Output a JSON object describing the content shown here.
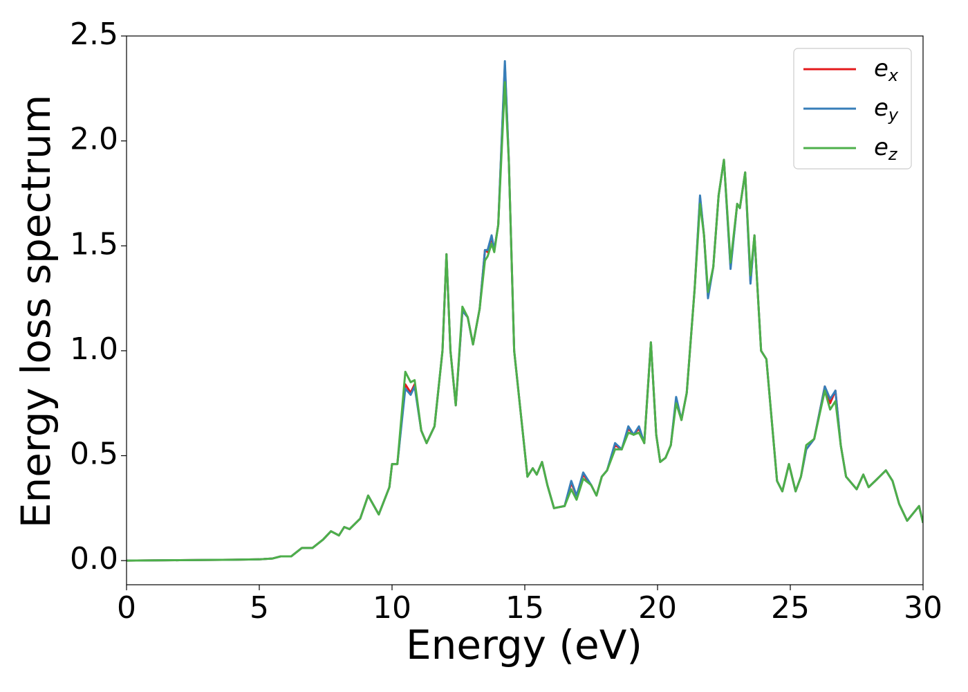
{
  "chart_data": {
    "type": "line",
    "xlabel": "Energy (eV)",
    "ylabel": "Energy loss spectrum",
    "x": [
      0,
      2,
      4,
      5,
      5.5,
      5.8,
      6.2,
      6.6,
      7.0,
      7.4,
      7.7,
      8.0,
      8.2,
      8.4,
      8.8,
      9.1,
      9.5,
      9.9,
      10.0,
      10.2,
      10.5,
      10.7,
      10.85,
      11.1,
      11.3,
      11.6,
      11.9,
      12.05,
      12.2,
      12.4,
      12.65,
      12.85,
      13.05,
      13.3,
      13.5,
      13.6,
      13.75,
      13.85,
      14.0,
      14.25,
      14.4,
      14.6,
      14.85,
      15.1,
      15.3,
      15.45,
      15.65,
      15.85,
      16.1,
      16.5,
      16.75,
      16.95,
      17.2,
      17.5,
      17.7,
      17.9,
      18.1,
      18.4,
      18.65,
      18.9,
      19.1,
      19.3,
      19.5,
      19.75,
      19.95,
      20.1,
      20.3,
      20.5,
      20.7,
      20.9,
      21.1,
      21.4,
      21.6,
      21.75,
      21.9,
      22.1,
      22.3,
      22.5,
      22.75,
      23.0,
      23.1,
      23.3,
      23.5,
      23.65,
      23.9,
      24.1,
      24.5,
      24.7,
      24.95,
      25.2,
      25.4,
      25.6,
      25.9,
      26.3,
      26.5,
      26.7,
      26.9,
      27.1,
      27.5,
      27.75,
      27.95,
      28.2,
      28.6,
      28.85,
      29.1,
      29.4,
      29.85,
      30
    ],
    "series": [
      {
        "name": "e_x",
        "color": "#e41a1c",
        "values": [
          0,
          0.002,
          0.004,
          0.006,
          0.01,
          0.02,
          0.02,
          0.06,
          0.06,
          0.1,
          0.14,
          0.12,
          0.16,
          0.15,
          0.2,
          0.31,
          0.22,
          0.35,
          0.46,
          0.46,
          0.84,
          0.8,
          0.84,
          0.62,
          0.56,
          0.64,
          1.0,
          1.46,
          1.0,
          0.74,
          1.19,
          1.16,
          1.03,
          1.2,
          1.48,
          1.47,
          1.54,
          1.48,
          1.6,
          2.36,
          1.9,
          1.0,
          0.7,
          0.4,
          0.44,
          0.41,
          0.47,
          0.36,
          0.25,
          0.26,
          0.37,
          0.31,
          0.41,
          0.36,
          0.31,
          0.4,
          0.43,
          0.55,
          0.53,
          0.63,
          0.6,
          0.63,
          0.56,
          1.04,
          0.6,
          0.47,
          0.49,
          0.55,
          0.77,
          0.67,
          0.8,
          1.3,
          1.73,
          1.55,
          1.26,
          1.4,
          1.74,
          1.91,
          1.4,
          1.7,
          1.68,
          1.85,
          1.33,
          1.55,
          1.0,
          0.96,
          0.38,
          0.33,
          0.46,
          0.33,
          0.4,
          0.53,
          0.58,
          0.83,
          0.75,
          0.81,
          0.55,
          0.4,
          0.34,
          0.41,
          0.35,
          0.38,
          0.43,
          0.38,
          0.27,
          0.19,
          0.26,
          0.18
        ]
      },
      {
        "name": "e_y",
        "color": "#377eb8",
        "values": [
          0,
          0.002,
          0.004,
          0.006,
          0.01,
          0.02,
          0.02,
          0.06,
          0.06,
          0.1,
          0.14,
          0.12,
          0.16,
          0.15,
          0.2,
          0.31,
          0.22,
          0.35,
          0.46,
          0.46,
          0.82,
          0.79,
          0.83,
          0.62,
          0.56,
          0.64,
          1.0,
          1.46,
          1.0,
          0.74,
          1.19,
          1.16,
          1.03,
          1.2,
          1.48,
          1.48,
          1.55,
          1.48,
          1.6,
          2.38,
          1.9,
          1.0,
          0.7,
          0.4,
          0.44,
          0.41,
          0.47,
          0.36,
          0.25,
          0.26,
          0.38,
          0.31,
          0.42,
          0.36,
          0.31,
          0.4,
          0.43,
          0.56,
          0.53,
          0.64,
          0.6,
          0.64,
          0.56,
          1.04,
          0.6,
          0.47,
          0.49,
          0.55,
          0.78,
          0.67,
          0.8,
          1.3,
          1.74,
          1.55,
          1.25,
          1.4,
          1.74,
          1.91,
          1.39,
          1.7,
          1.68,
          1.85,
          1.32,
          1.55,
          1.0,
          0.96,
          0.38,
          0.33,
          0.46,
          0.33,
          0.4,
          0.53,
          0.58,
          0.83,
          0.77,
          0.81,
          0.55,
          0.4,
          0.34,
          0.41,
          0.35,
          0.38,
          0.43,
          0.38,
          0.27,
          0.19,
          0.26,
          0.18
        ]
      },
      {
        "name": "e_z",
        "color": "#4daf4a",
        "values": [
          0,
          0.002,
          0.004,
          0.006,
          0.01,
          0.02,
          0.02,
          0.06,
          0.06,
          0.1,
          0.14,
          0.12,
          0.16,
          0.15,
          0.2,
          0.31,
          0.22,
          0.35,
          0.46,
          0.46,
          0.9,
          0.85,
          0.86,
          0.62,
          0.56,
          0.64,
          1.0,
          1.46,
          1.0,
          0.74,
          1.21,
          1.16,
          1.03,
          1.2,
          1.43,
          1.45,
          1.51,
          1.47,
          1.6,
          2.28,
          1.9,
          1.0,
          0.7,
          0.4,
          0.44,
          0.41,
          0.47,
          0.36,
          0.25,
          0.26,
          0.34,
          0.29,
          0.39,
          0.36,
          0.31,
          0.4,
          0.43,
          0.53,
          0.53,
          0.61,
          0.6,
          0.61,
          0.56,
          1.04,
          0.6,
          0.47,
          0.49,
          0.55,
          0.75,
          0.67,
          0.8,
          1.3,
          1.7,
          1.55,
          1.28,
          1.4,
          1.74,
          1.91,
          1.42,
          1.7,
          1.68,
          1.85,
          1.36,
          1.55,
          1.0,
          0.96,
          0.38,
          0.33,
          0.46,
          0.33,
          0.4,
          0.55,
          0.58,
          0.81,
          0.72,
          0.76,
          0.55,
          0.4,
          0.34,
          0.41,
          0.35,
          0.38,
          0.43,
          0.38,
          0.27,
          0.19,
          0.26,
          0.18
        ]
      }
    ],
    "xlim": [
      0,
      30
    ],
    "xticks": [
      0,
      5,
      10,
      15,
      20,
      25,
      30
    ],
    "ylim": [
      -0.115,
      2.5
    ],
    "yticks": [
      {
        "value": 0,
        "label": "0.0"
      },
      {
        "value": 0.5,
        "label": "0.5"
      },
      {
        "value": 1,
        "label": "1.0"
      },
      {
        "value": 1.5,
        "label": "1.5"
      },
      {
        "value": 2,
        "label": "2.0"
      },
      {
        "value": 2.5,
        "label": "2.5"
      }
    ],
    "grid": false,
    "legend": "upper right"
  }
}
